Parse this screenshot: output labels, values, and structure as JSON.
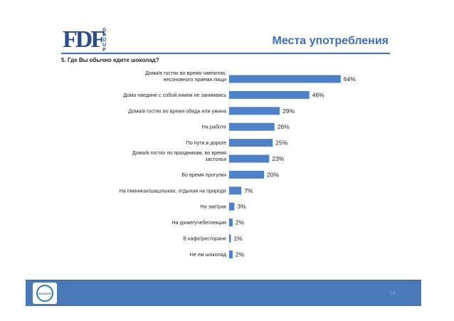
{
  "header": {
    "logo_text": "FDF",
    "logo_vertical": "GROUP",
    "title": "Места употребления",
    "question": "5. Где Вы обычно едите шоколад?"
  },
  "colors": {
    "bar": "#4f81c7",
    "accent": "#3f6fb3",
    "footer": "#4a79b7"
  },
  "chart_data": {
    "type": "bar",
    "orientation": "horizontal",
    "categories": [
      "Дома/в гостях во время чаепития, несоновного приема пищи",
      "Дома наедине с собой,никем не занимаясь",
      "Дома/в гостях во время обеда или ужина",
      "На работе",
      "По пути,в дороге",
      "Дома/в гостях по праздникам, во время застолья",
      "Во время прогулки",
      "На пикниках/шашлыках, отдыхая на природе",
      "На завтрак",
      "На уроке/учебе/лекции",
      "В кафе/ресторане",
      "Не ем шоколад"
    ],
    "values": [
      64,
      46,
      29,
      26,
      25,
      23,
      20,
      7,
      3,
      2,
      1,
      2
    ],
    "value_labels": [
      "64%",
      "46%",
      "29%",
      "26%",
      "25%",
      "23%",
      "20%",
      "7%",
      "3%",
      "2%",
      "1%",
      "2%"
    ],
    "xlim": [
      0,
      70
    ],
    "grid": false,
    "legend": "none"
  },
  "footer": {
    "badge_text": "ESOMAR",
    "page_number": "16"
  }
}
